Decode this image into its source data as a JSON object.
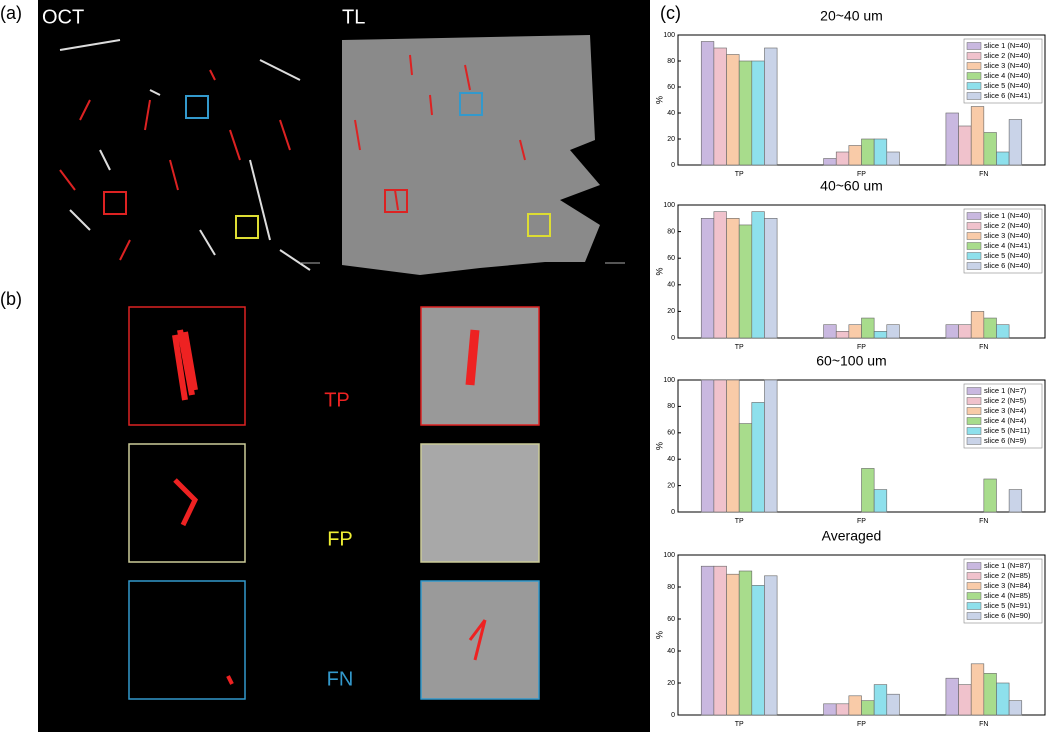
{
  "labels": {
    "a": "(a)",
    "b": "(b)",
    "c": "(c)",
    "oct": "OCT",
    "tl": "TL",
    "tp": "TP",
    "fp": "FP",
    "fn": "FN"
  },
  "chart_data": [
    {
      "type": "bar",
      "title": "20~40 um",
      "ylabel": "%",
      "categories": [
        "TP",
        "FP",
        "FN"
      ],
      "ylim": [
        0,
        100
      ],
      "yticks": [
        0,
        20,
        40,
        60,
        80,
        100
      ],
      "legend": "upper right",
      "series": [
        {
          "name": "slice 1 (N=40)",
          "color": "#c9b8e0",
          "values": [
            95,
            5,
            40
          ]
        },
        {
          "name": "slice 2 (N=40)",
          "color": "#f0c2cc",
          "values": [
            90,
            10,
            30
          ]
        },
        {
          "name": "slice 3 (N=40)",
          "color": "#f9cba8",
          "values": [
            85,
            15,
            45
          ]
        },
        {
          "name": "slice 4 (N=40)",
          "color": "#a8dc8c",
          "values": [
            80,
            20,
            25
          ]
        },
        {
          "name": "slice 5 (N=40)",
          "color": "#8ee0ec",
          "values": [
            80,
            20,
            10
          ]
        },
        {
          "name": "slice 6 (N=41)",
          "color": "#c9d3e8",
          "values": [
            90,
            10,
            35
          ]
        }
      ]
    },
    {
      "type": "bar",
      "title": "40~60 um",
      "ylabel": "%",
      "categories": [
        "TP",
        "FP",
        "FN"
      ],
      "ylim": [
        0,
        100
      ],
      "yticks": [
        0,
        20,
        40,
        60,
        80,
        100
      ],
      "legend": "upper right",
      "series": [
        {
          "name": "slice 1 (N=40)",
          "color": "#c9b8e0",
          "values": [
            90,
            10,
            10
          ]
        },
        {
          "name": "slice 2 (N=40)",
          "color": "#f0c2cc",
          "values": [
            95,
            5,
            10
          ]
        },
        {
          "name": "slice 3 (N=40)",
          "color": "#f9cba8",
          "values": [
            90,
            10,
            20
          ]
        },
        {
          "name": "slice 4 (N=41)",
          "color": "#a8dc8c",
          "values": [
            85,
            15,
            15
          ]
        },
        {
          "name": "slice 5 (N=40)",
          "color": "#8ee0ec",
          "values": [
            95,
            5,
            10
          ]
        },
        {
          "name": "slice 6 (N=40)",
          "color": "#c9d3e8",
          "values": [
            90,
            10,
            0
          ]
        }
      ]
    },
    {
      "type": "bar",
      "title": "60~100 um",
      "ylabel": "%",
      "categories": [
        "TP",
        "FP",
        "FN"
      ],
      "ylim": [
        0,
        100
      ],
      "yticks": [
        0,
        20,
        40,
        60,
        80,
        100
      ],
      "legend": "upper right",
      "series": [
        {
          "name": "slice 1 (N=7)",
          "color": "#c9b8e0",
          "values": [
            100,
            0,
            0
          ]
        },
        {
          "name": "slice 2 (N=5)",
          "color": "#f0c2cc",
          "values": [
            100,
            0,
            0
          ]
        },
        {
          "name": "slice 3 (N=4)",
          "color": "#f9cba8",
          "values": [
            100,
            0,
            0
          ]
        },
        {
          "name": "slice 4 (N=4)",
          "color": "#a8dc8c",
          "values": [
            67,
            33,
            25
          ]
        },
        {
          "name": "slice 5 (N=11)",
          "color": "#8ee0ec",
          "values": [
            83,
            17,
            0
          ]
        },
        {
          "name": "slice 6 (N=9)",
          "color": "#c9d3e8",
          "values": [
            100,
            0,
            17
          ]
        }
      ]
    },
    {
      "type": "bar",
      "title": "Averaged",
      "ylabel": "%",
      "categories": [
        "TP",
        "FP",
        "FN"
      ],
      "ylim": [
        0,
        100
      ],
      "yticks": [
        0,
        20,
        40,
        60,
        80,
        100
      ],
      "legend": "upper right",
      "series": [
        {
          "name": "slice 1 (N=87)",
          "color": "#c9b8e0",
          "values": [
            93,
            7,
            23
          ]
        },
        {
          "name": "slice 2 (N=85)",
          "color": "#f0c2cc",
          "values": [
            93,
            7,
            19
          ]
        },
        {
          "name": "slice 3 (N=84)",
          "color": "#f9cba8",
          "values": [
            88,
            12,
            32
          ]
        },
        {
          "name": "slice 4 (N=85)",
          "color": "#a8dc8c",
          "values": [
            90,
            9,
            26
          ]
        },
        {
          "name": "slice 5 (N=91)",
          "color": "#8ee0ec",
          "values": [
            81,
            19,
            20
          ]
        },
        {
          "name": "slice 6 (N=90)",
          "color": "#c9d3e8",
          "values": [
            87,
            13,
            9
          ]
        }
      ]
    }
  ]
}
